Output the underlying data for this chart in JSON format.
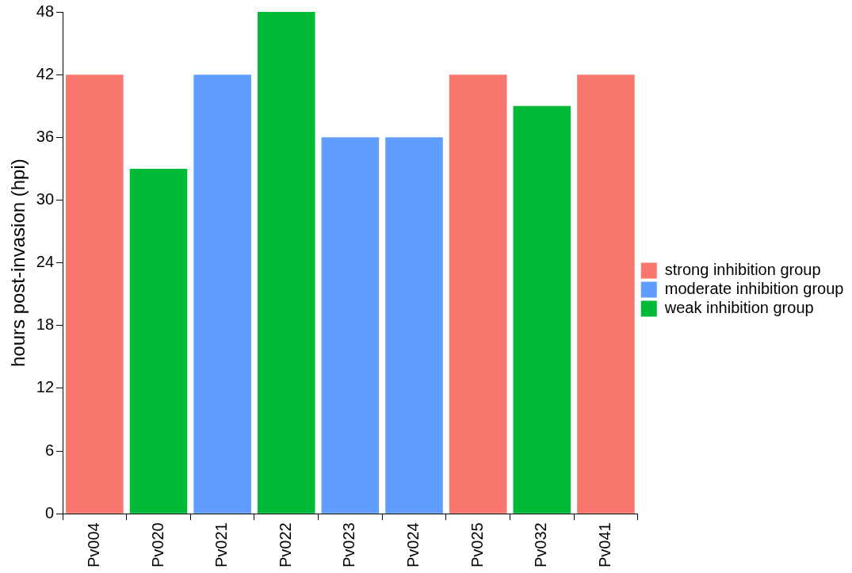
{
  "chart_data": {
    "type": "bar",
    "ylabel": "hours post-invasion (hpi)",
    "categories": [
      "Pv004",
      "Pv020",
      "Pv021",
      "Pv022",
      "Pv023",
      "Pv024",
      "Pv025",
      "Pv032",
      "Pv041"
    ],
    "series": [
      {
        "name": "strong inhibition group",
        "color": "#f8766d",
        "values": [
          42,
          null,
          null,
          null,
          null,
          null,
          42,
          null,
          42
        ]
      },
      {
        "name": "moderate inhibition group",
        "color": "#619cff",
        "values": [
          null,
          null,
          42,
          null,
          36,
          36,
          null,
          null,
          null
        ]
      },
      {
        "name": "weak inhibition group",
        "color": "#00ba38",
        "values": [
          null,
          33,
          null,
          48,
          null,
          null,
          null,
          39,
          null
        ]
      }
    ],
    "ylim": [
      0,
      48
    ],
    "yticks": [
      0,
      6,
      12,
      18,
      24,
      30,
      36,
      42,
      48
    ],
    "grid": false,
    "legend": "right"
  }
}
